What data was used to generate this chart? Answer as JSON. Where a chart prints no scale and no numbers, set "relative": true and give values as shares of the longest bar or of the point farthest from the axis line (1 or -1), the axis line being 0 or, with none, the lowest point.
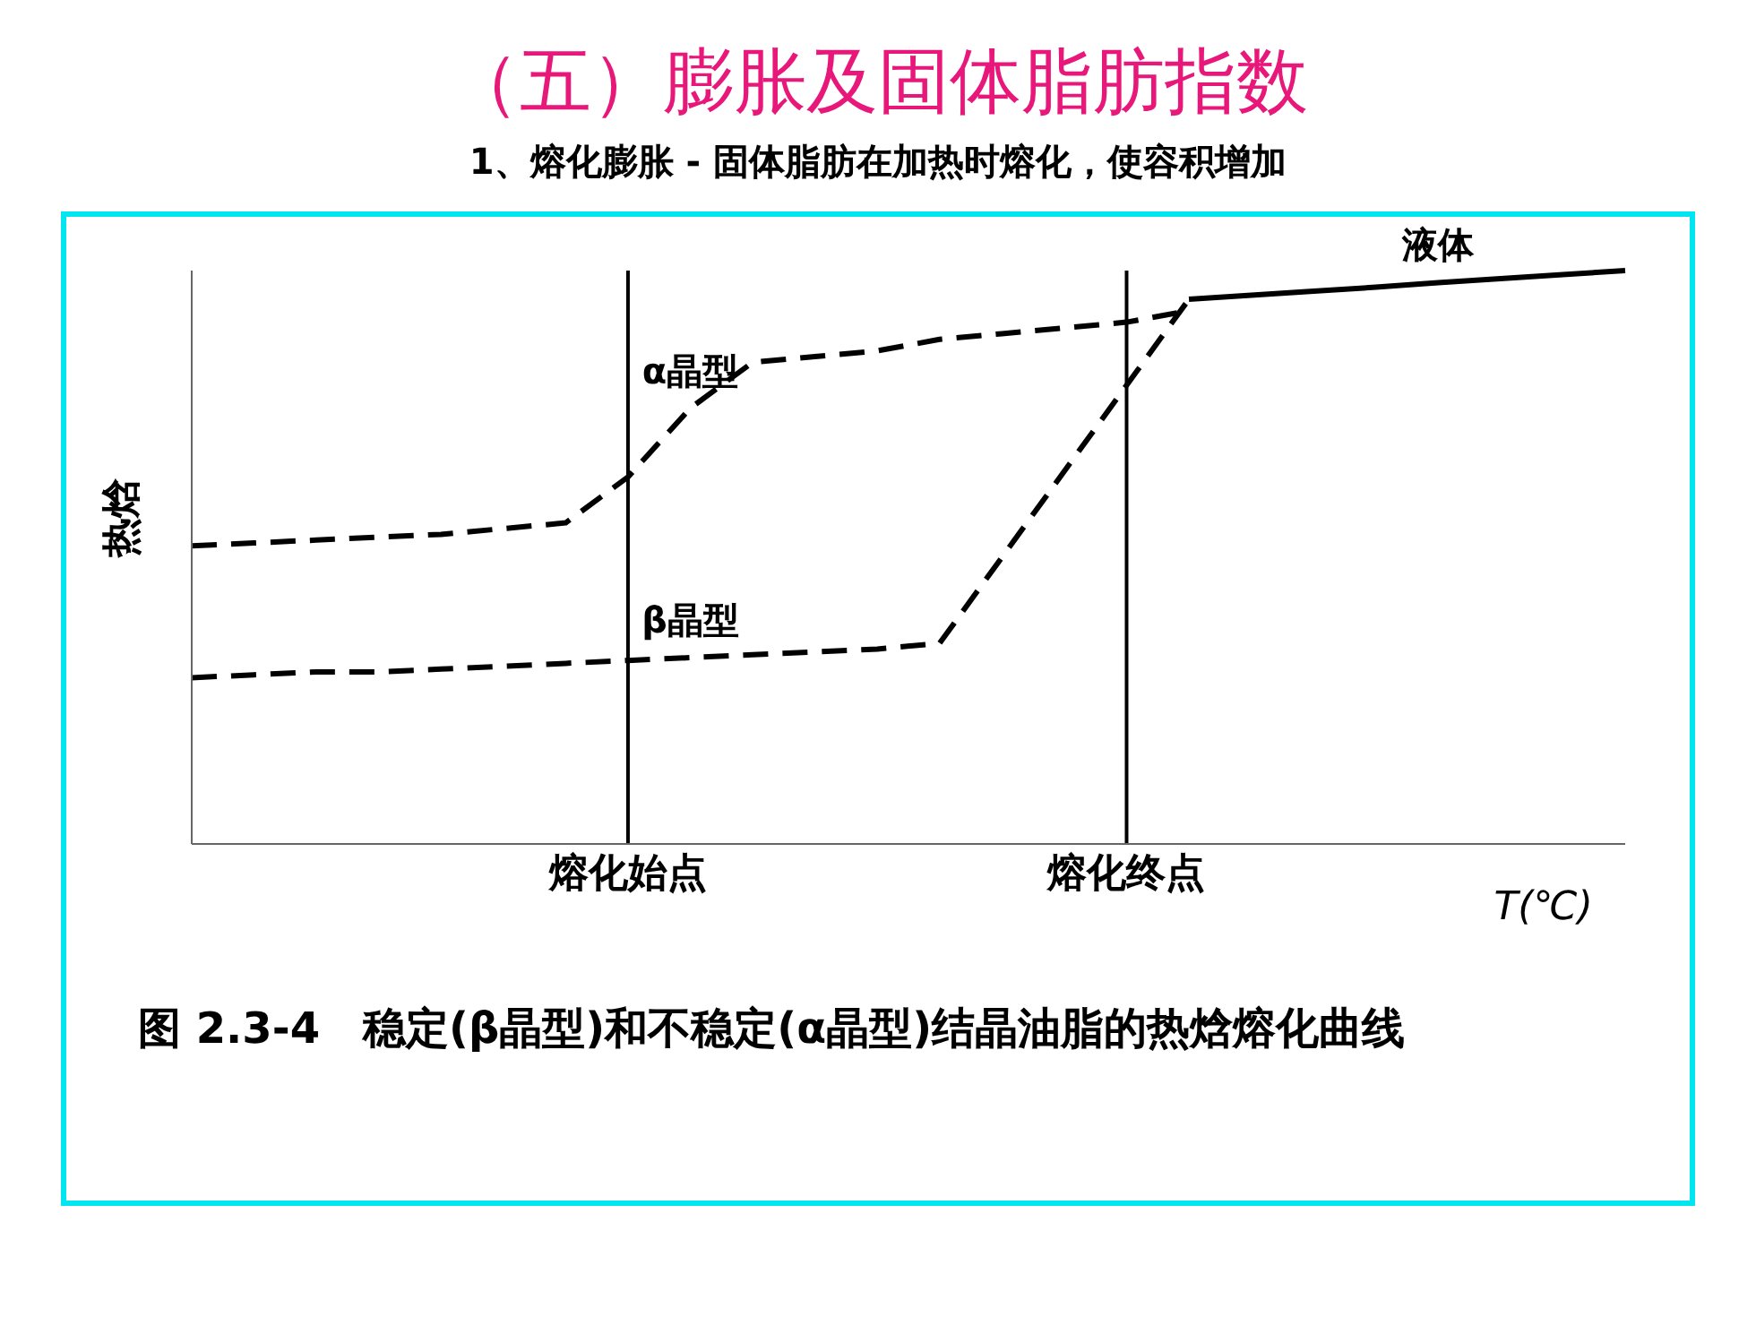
{
  "chart_data": {
    "type": "line",
    "title": "（五）膨胀及固体脂肪指数",
    "subtitle": "1、熔化膨胀 - 固体脂肪在加热时熔化，使容积增加",
    "xlabel": "T(℃)",
    "ylabel": "热焓",
    "relative": true,
    "categories": [
      null,
      null,
      null,
      null,
      null,
      null,
      null,
      "熔化始点",
      null,
      null,
      null,
      null,
      null,
      null,
      null,
      "熔化终点",
      null,
      null,
      null,
      null,
      null,
      null,
      null,
      null
    ],
    "series": [
      {
        "name": "α晶型",
        "color": "#000000",
        "line_style": "dashed",
        "values": [
          0.52,
          0.525,
          0.53,
          0.535,
          0.54,
          0.55,
          0.56,
          0.64,
          0.76,
          0.84,
          0.85,
          0.86,
          0.88,
          0.89,
          0.9,
          0.91,
          0.93,
          null,
          null,
          null,
          null,
          null,
          null,
          null
        ]
      },
      {
        "name": "β晶型",
        "color": "#000000",
        "line_style": "dashed",
        "values": [
          0.29,
          0.295,
          0.3,
          0.3,
          0.305,
          0.31,
          0.315,
          0.32,
          0.325,
          0.33,
          0.335,
          0.34,
          0.35,
          0.5,
          0.65,
          0.8,
          0.95,
          null,
          null,
          null,
          null,
          null,
          null,
          null
        ]
      },
      {
        "name": "液体",
        "color": "#000000",
        "line_style": "solid",
        "values": [
          null,
          null,
          null,
          null,
          null,
          null,
          null,
          null,
          null,
          null,
          null,
          null,
          null,
          null,
          null,
          null,
          0.95,
          0.957,
          0.964,
          0.971,
          0.979,
          0.986,
          0.993,
          1.0
        ]
      }
    ],
    "ref_lines": [
      {
        "axis": "x",
        "value": "熔化始点",
        "color": "#000000"
      },
      {
        "axis": "x",
        "value": "熔化终点",
        "color": "#000000"
      }
    ],
    "grid": false,
    "legend": false,
    "marker": "none",
    "annotations": [
      "图 2.3-4　稳定(β晶型)和不稳定(α晶型)结晶油脂的热焓熔化曲线"
    ]
  }
}
